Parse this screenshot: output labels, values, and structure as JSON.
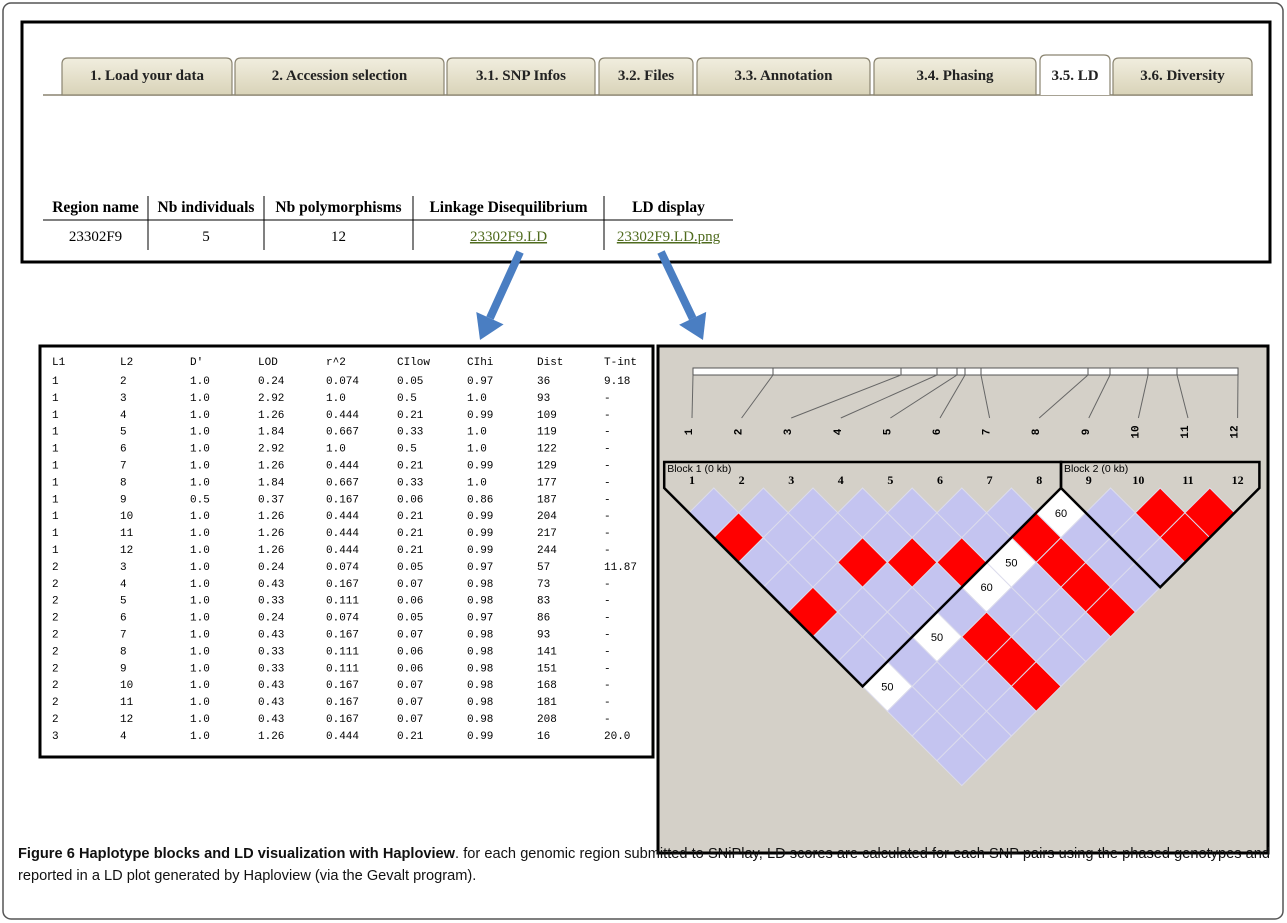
{
  "tabs": [
    "1. Load your data",
    "2. Accession selection",
    "3.1. SNP Infos",
    "3.2. Files",
    "3.3. Annotation",
    "3.4. Phasing",
    "3.5. LD",
    "3.6. Diversity"
  ],
  "active_tab_index": 6,
  "region_table": {
    "headers": [
      "Region name",
      "Nb individuals",
      "Nb polymorphisms",
      "Linkage Disequilibrium",
      "LD display"
    ],
    "rows": [
      [
        "23302F9",
        "5",
        "12",
        "23302F9.LD",
        "23302F9.LD.png"
      ]
    ]
  },
  "ld_table": {
    "headers": [
      "L1",
      "L2",
      "D'",
      "LOD",
      "r^2",
      "CIlow",
      "CIhi",
      "Dist",
      "T-int"
    ],
    "rows": [
      [
        "1",
        "2",
        "1.0",
        "0.24",
        "0.074",
        "0.05",
        "0.97",
        "36",
        "9.18"
      ],
      [
        "1",
        "3",
        "1.0",
        "2.92",
        "1.0",
        "0.5",
        "1.0",
        "93",
        "-"
      ],
      [
        "1",
        "4",
        "1.0",
        "1.26",
        "0.444",
        "0.21",
        "0.99",
        "109",
        "-"
      ],
      [
        "1",
        "5",
        "1.0",
        "1.84",
        "0.667",
        "0.33",
        "1.0",
        "119",
        "-"
      ],
      [
        "1",
        "6",
        "1.0",
        "2.92",
        "1.0",
        "0.5",
        "1.0",
        "122",
        "-"
      ],
      [
        "1",
        "7",
        "1.0",
        "1.26",
        "0.444",
        "0.21",
        "0.99",
        "129",
        "-"
      ],
      [
        "1",
        "8",
        "1.0",
        "1.84",
        "0.667",
        "0.33",
        "1.0",
        "177",
        "-"
      ],
      [
        "1",
        "9",
        "0.5",
        "0.37",
        "0.167",
        "0.06",
        "0.86",
        "187",
        "-"
      ],
      [
        "1",
        "10",
        "1.0",
        "1.26",
        "0.444",
        "0.21",
        "0.99",
        "204",
        "-"
      ],
      [
        "1",
        "11",
        "1.0",
        "1.26",
        "0.444",
        "0.21",
        "0.99",
        "217",
        "-"
      ],
      [
        "1",
        "12",
        "1.0",
        "1.26",
        "0.444",
        "0.21",
        "0.99",
        "244",
        "-"
      ],
      [
        "2",
        "3",
        "1.0",
        "0.24",
        "0.074",
        "0.05",
        "0.97",
        "57",
        "11.87"
      ],
      [
        "2",
        "4",
        "1.0",
        "0.43",
        "0.167",
        "0.07",
        "0.98",
        "73",
        "-"
      ],
      [
        "2",
        "5",
        "1.0",
        "0.33",
        "0.111",
        "0.06",
        "0.98",
        "83",
        "-"
      ],
      [
        "2",
        "6",
        "1.0",
        "0.24",
        "0.074",
        "0.05",
        "0.97",
        "86",
        "-"
      ],
      [
        "2",
        "7",
        "1.0",
        "0.43",
        "0.167",
        "0.07",
        "0.98",
        "93",
        "-"
      ],
      [
        "2",
        "8",
        "1.0",
        "0.33",
        "0.111",
        "0.06",
        "0.98",
        "141",
        "-"
      ],
      [
        "2",
        "9",
        "1.0",
        "0.33",
        "0.111",
        "0.06",
        "0.98",
        "151",
        "-"
      ],
      [
        "2",
        "10",
        "1.0",
        "0.43",
        "0.167",
        "0.07",
        "0.98",
        "168",
        "-"
      ],
      [
        "2",
        "11",
        "1.0",
        "0.43",
        "0.167",
        "0.07",
        "0.98",
        "181",
        "-"
      ],
      [
        "2",
        "12",
        "1.0",
        "0.43",
        "0.167",
        "0.07",
        "0.98",
        "208",
        "-"
      ],
      [
        "3",
        "4",
        "1.0",
        "1.26",
        "0.444",
        "0.21",
        "0.99",
        "16",
        "20.0"
      ]
    ]
  },
  "haploview": {
    "markers": [
      1,
      2,
      3,
      4,
      5,
      6,
      7,
      8,
      9,
      10,
      11,
      12
    ],
    "blocks": [
      {
        "label": "Block 1 (0 kb)",
        "markers": [
          1,
          8
        ]
      },
      {
        "label": "Block 2 (0 kb)",
        "markers": [
          9,
          12
        ]
      }
    ],
    "strong_pairs": [
      [
        1,
        3
      ],
      [
        1,
        6
      ],
      [
        3,
        6
      ],
      [
        4,
        7
      ],
      [
        5,
        8
      ],
      [
        7,
        9
      ],
      [
        7,
        10
      ],
      [
        7,
        11
      ],
      [
        7,
        12
      ],
      [
        10,
        11
      ],
      [
        10,
        12
      ],
      [
        11,
        12
      ],
      [
        4,
        10
      ],
      [
        4,
        11
      ],
      [
        4,
        12
      ]
    ],
    "labeled_pairs": [
      {
        "pair": [
          8,
          9
        ],
        "label": "60"
      },
      {
        "pair": [
          6,
          9
        ],
        "label": "50"
      },
      {
        "pair": [
          5,
          9
        ],
        "label": "60"
      },
      {
        "pair": [
          3,
          9
        ],
        "label": "50"
      },
      {
        "pair": [
          1,
          9
        ],
        "label": "50"
      }
    ],
    "colors": {
      "strong": "#ff0000",
      "weak": "#c4c4f0",
      "labeled": "#ffffff",
      "background": "#d4d0c8"
    }
  },
  "caption": {
    "title": "Figure 6 Haplotype blocks and LD visualization with Haploview",
    "text": ". for each genomic region submitted to SNiPlay, LD scores are calculated for each SNP pairs using the phased genotypes and reported in a LD plot generated by Haploview (via the Gevalt program)."
  }
}
